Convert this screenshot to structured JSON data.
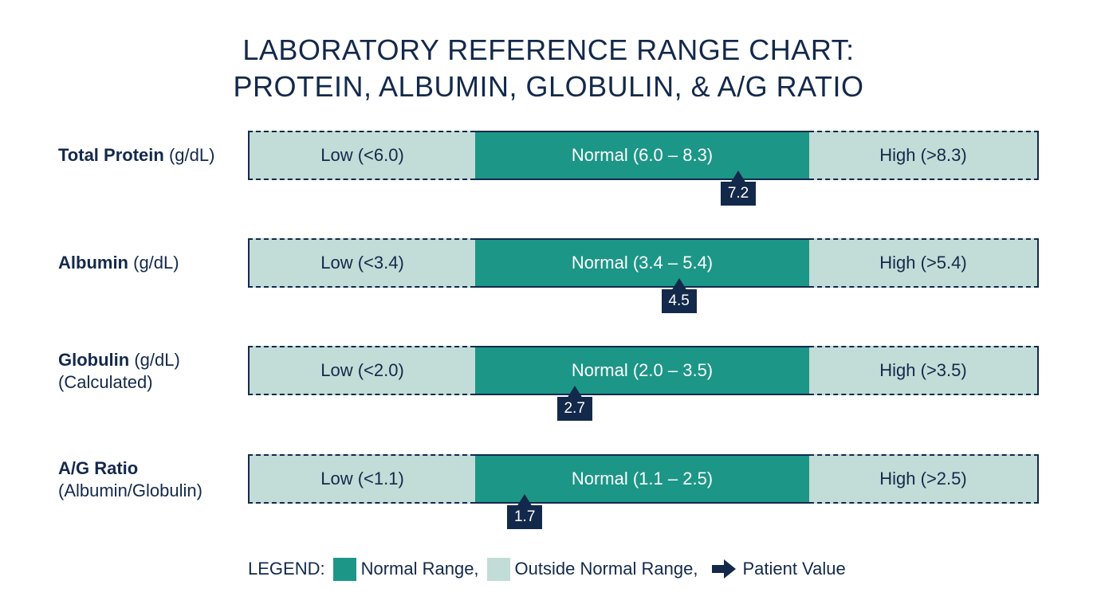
{
  "chart_data": {
    "type": "range",
    "title": [
      "LABORATORY REFERENCE RANGE CHART:",
      "PROTEIN, ALBUMIN, GLOBULIN, & A/G RATIO"
    ],
    "rows": [
      {
        "name": "Total Protein",
        "unit": "(g/dL)",
        "sub": "",
        "low_label": "Low (<6.0)",
        "normal_label": "Normal (6.0 – 8.3)",
        "high_label": "High (>8.3)",
        "normal_range": [
          6.0,
          8.3
        ],
        "value": 7.2,
        "value_label": "7.2",
        "marker_pos": 0.62
      },
      {
        "name": "Albumin",
        "unit": "(g/dL)",
        "sub": "",
        "low_label": "Low (<3.4)",
        "normal_label": "Normal (3.4 – 5.4)",
        "high_label": "High (>5.4)",
        "normal_range": [
          3.4,
          5.4
        ],
        "value": 4.5,
        "value_label": "4.5",
        "marker_pos": 0.545
      },
      {
        "name": "Globulin",
        "unit": "(g/dL)",
        "sub": "(Calculated)",
        "low_label": "Low (<2.0)",
        "normal_label": "Normal (2.0 – 3.5)",
        "high_label": "High (>3.5)",
        "normal_range": [
          2.0,
          3.5
        ],
        "value": 2.7,
        "value_label": "2.7",
        "marker_pos": 0.413
      },
      {
        "name": "A/G Ratio",
        "unit": "",
        "sub": "(Albumin/Globulin)",
        "low_label": "Low (<1.1)",
        "normal_label": "Normal (1.1 – 2.5)",
        "high_label": "High (>2.5)",
        "normal_range": [
          1.1,
          2.5
        ],
        "value": 1.7,
        "value_label": "1.7",
        "marker_pos": 0.35
      }
    ],
    "legend": {
      "prefix": "LEGEND:",
      "normal": "Normal Range,",
      "outside": "Outside Normal Range,",
      "patient": "Patient Value"
    },
    "colors": {
      "normal": "#1c9687",
      "outside": "#c2dcd7",
      "marker": "#13294b"
    }
  }
}
